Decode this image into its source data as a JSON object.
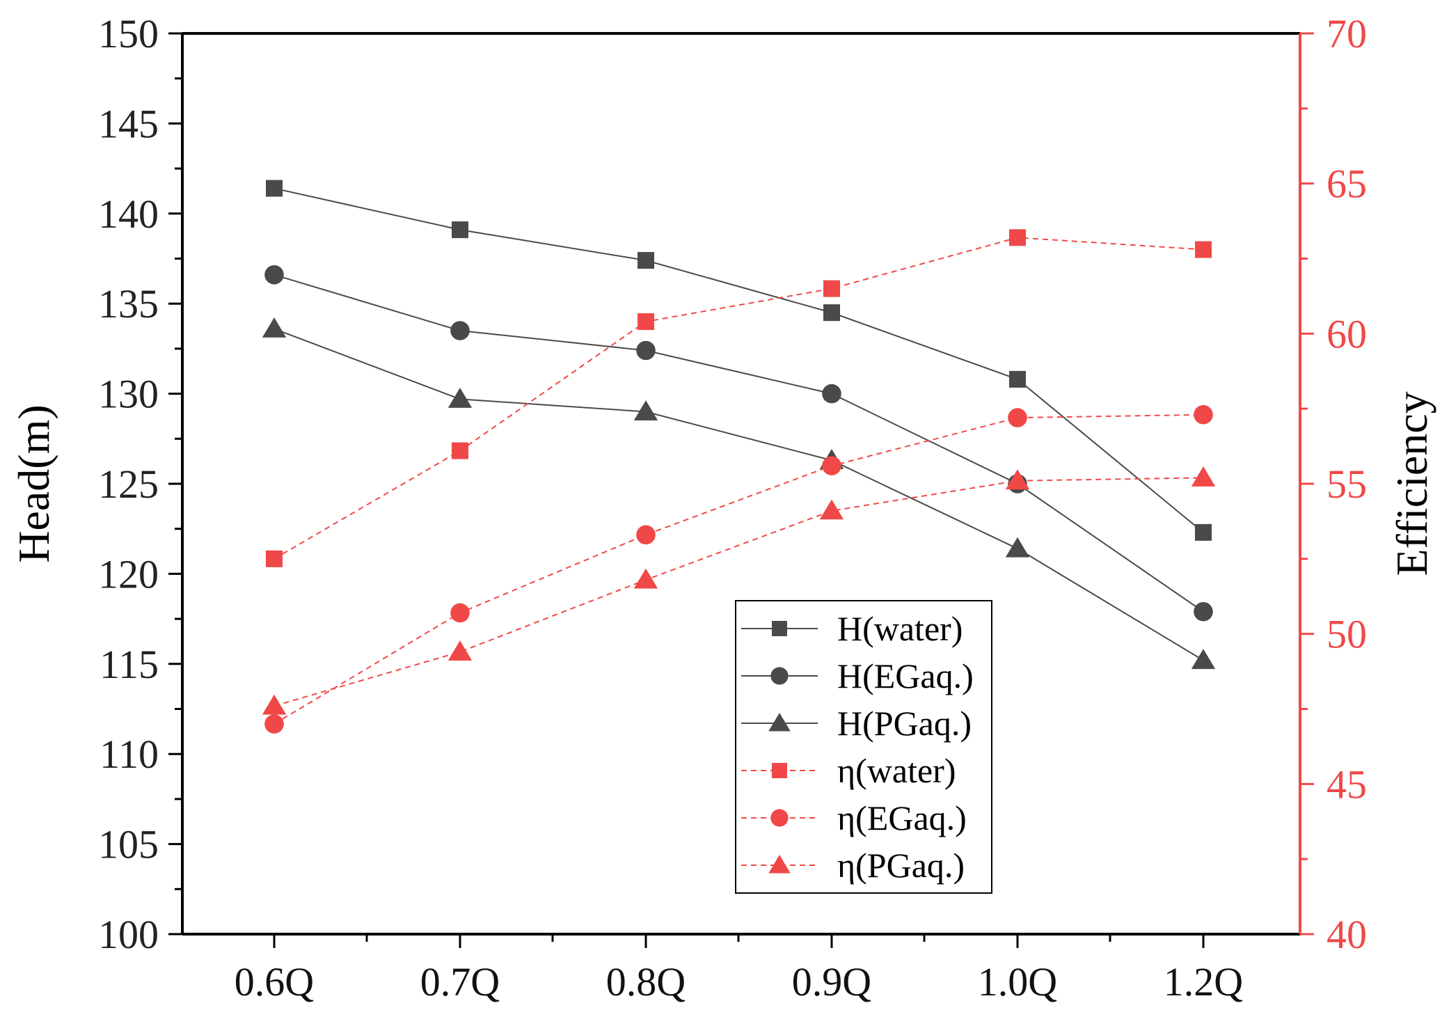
{
  "chart_data": {
    "type": "line",
    "categories": [
      "0.6Q",
      "0.7Q",
      "0.8Q",
      "0.9Q",
      "1.0Q",
      "1.2Q"
    ],
    "ylabel": "Head(m)",
    "y2label": "Efficiency",
    "ylim": [
      100,
      150
    ],
    "y2lim": [
      40,
      70
    ],
    "yticks": [
      100,
      105,
      110,
      115,
      120,
      125,
      130,
      135,
      140,
      145,
      150
    ],
    "y2ticks": [
      40,
      45,
      50,
      55,
      60,
      65,
      70
    ],
    "legend_position": "center-right",
    "colors": {
      "head": "#4a4a4a",
      "eff": "#f04848",
      "axis_left": "#000000",
      "axis_right": "#f04848"
    },
    "series": [
      {
        "name": "H(water)",
        "axis": "left",
        "marker": "square",
        "style": "solid",
        "values": [
          141.4,
          139.1,
          137.4,
          134.5,
          130.8,
          122.3
        ]
      },
      {
        "name": "H(EGaq.)",
        "axis": "left",
        "marker": "circle",
        "style": "solid",
        "values": [
          136.6,
          133.5,
          132.4,
          130.0,
          125.0,
          117.9
        ]
      },
      {
        "name": "H(PGaq.)",
        "axis": "left",
        "marker": "triangle",
        "style": "solid",
        "values": [
          133.6,
          129.7,
          129.0,
          126.3,
          121.4,
          115.2
        ]
      },
      {
        "name": "η(water)",
        "axis": "right",
        "marker": "square",
        "style": "dashed",
        "values": [
          52.5,
          56.1,
          60.4,
          61.5,
          63.2,
          62.8
        ]
      },
      {
        "name": "η(EGaq.)",
        "axis": "right",
        "marker": "circle",
        "style": "dashed",
        "values": [
          47.0,
          50.7,
          53.3,
          55.6,
          57.2,
          57.3
        ]
      },
      {
        "name": "η(PGaq.)",
        "axis": "right",
        "marker": "triangle",
        "style": "dashed",
        "values": [
          47.6,
          49.4,
          51.8,
          54.1,
          55.1,
          55.2
        ]
      }
    ]
  }
}
